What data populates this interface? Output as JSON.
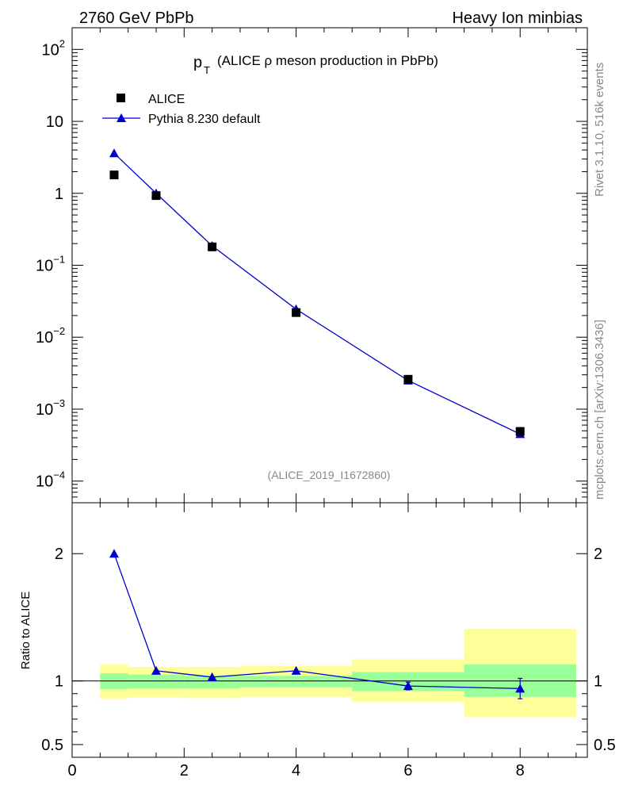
{
  "header": {
    "left": "2760 GeV PbPb",
    "right": "Heavy Ion minbias"
  },
  "side_labels": {
    "top": "Rivet 3.1.10,  516k events",
    "bottom": "mcplots.cern.ch [arXiv:1306.3436]"
  },
  "colors": {
    "data": "#000000",
    "mc": "#0000cc",
    "band_inner": "#99ff99",
    "band_outer": "#ffff99"
  },
  "chart_data": [
    {
      "type": "scatter",
      "title": "p_T (ALICE ρ meson production in PbPb)",
      "title_main": "p",
      "title_sub": "T",
      "title_rest": "(ALICE ρ meson production in PbPb)",
      "watermark": "(ALICE_2019_I1672860)",
      "yscale": "log",
      "xlim": [
        0,
        9.2
      ],
      "ylim": [
        5e-05,
        200
      ],
      "y_tick_labels": [
        {
          "value": 100,
          "base": "10",
          "exp": "2"
        },
        {
          "value": 10,
          "base": "10",
          "exp": ""
        },
        {
          "value": 1,
          "base": "1",
          "exp": ""
        },
        {
          "value": 0.1,
          "base": "10",
          "exp": "−1"
        },
        {
          "value": 0.01,
          "base": "10",
          "exp": "−2"
        },
        {
          "value": 0.001,
          "base": "10",
          "exp": "−3"
        },
        {
          "value": 0.0001,
          "base": "10",
          "exp": "−4"
        }
      ],
      "legend_position": "top-left",
      "series": [
        {
          "name": "ALICE",
          "marker": "square",
          "x": [
            0.75,
            1.5,
            2.5,
            4,
            6,
            8
          ],
          "y": [
            1.8,
            0.93,
            0.18,
            0.022,
            0.0026,
            0.00049
          ]
        },
        {
          "name": "Pythia 8.230 default",
          "marker": "triangle",
          "x": [
            0.75,
            1.5,
            2.5,
            4,
            6,
            8
          ],
          "y": [
            3.6,
            1.0,
            0.186,
            0.0245,
            0.0025,
            0.00045
          ]
        }
      ]
    },
    {
      "type": "line",
      "ylabel": "Ratio to ALICE",
      "xlim": [
        0,
        9.2
      ],
      "ylim": [
        0.4,
        2.4
      ],
      "x_ticks": [
        0,
        2,
        4,
        6,
        8
      ],
      "y_ticks": [
        0.5,
        1,
        2
      ],
      "y_tick_labels": [
        "0.5",
        "1",
        "2"
      ],
      "reference_line": 1,
      "bands": [
        {
          "x0": 0.5,
          "x1": 1.0,
          "inner": [
            0.935,
            1.06
          ],
          "outer": [
            0.86,
            1.13
          ]
        },
        {
          "x0": 1.0,
          "x1": 2.0,
          "inner": [
            0.94,
            1.05
          ],
          "outer": [
            0.87,
            1.11
          ]
        },
        {
          "x0": 2.0,
          "x1": 3.0,
          "inner": [
            0.94,
            1.04
          ],
          "outer": [
            0.865,
            1.11
          ]
        },
        {
          "x0": 3.0,
          "x1": 5.0,
          "inner": [
            0.95,
            1.04
          ],
          "outer": [
            0.875,
            1.12
          ]
        },
        {
          "x0": 5.0,
          "x1": 7.0,
          "inner": [
            0.92,
            1.07
          ],
          "outer": [
            0.835,
            1.17
          ]
        },
        {
          "x0": 7.0,
          "x1": 9.0,
          "inner": [
            0.875,
            1.13
          ],
          "outer": [
            0.715,
            1.41
          ]
        }
      ],
      "series": [
        {
          "name": "Pythia 8.230 default",
          "x": [
            0.75,
            1.5,
            2.5,
            4,
            6,
            8
          ],
          "y": [
            2.0,
            1.08,
            1.03,
            1.08,
            0.96,
            0.94
          ],
          "yerr": [
            0,
            0,
            0,
            0,
            0.03,
            0.08
          ]
        }
      ]
    }
  ]
}
